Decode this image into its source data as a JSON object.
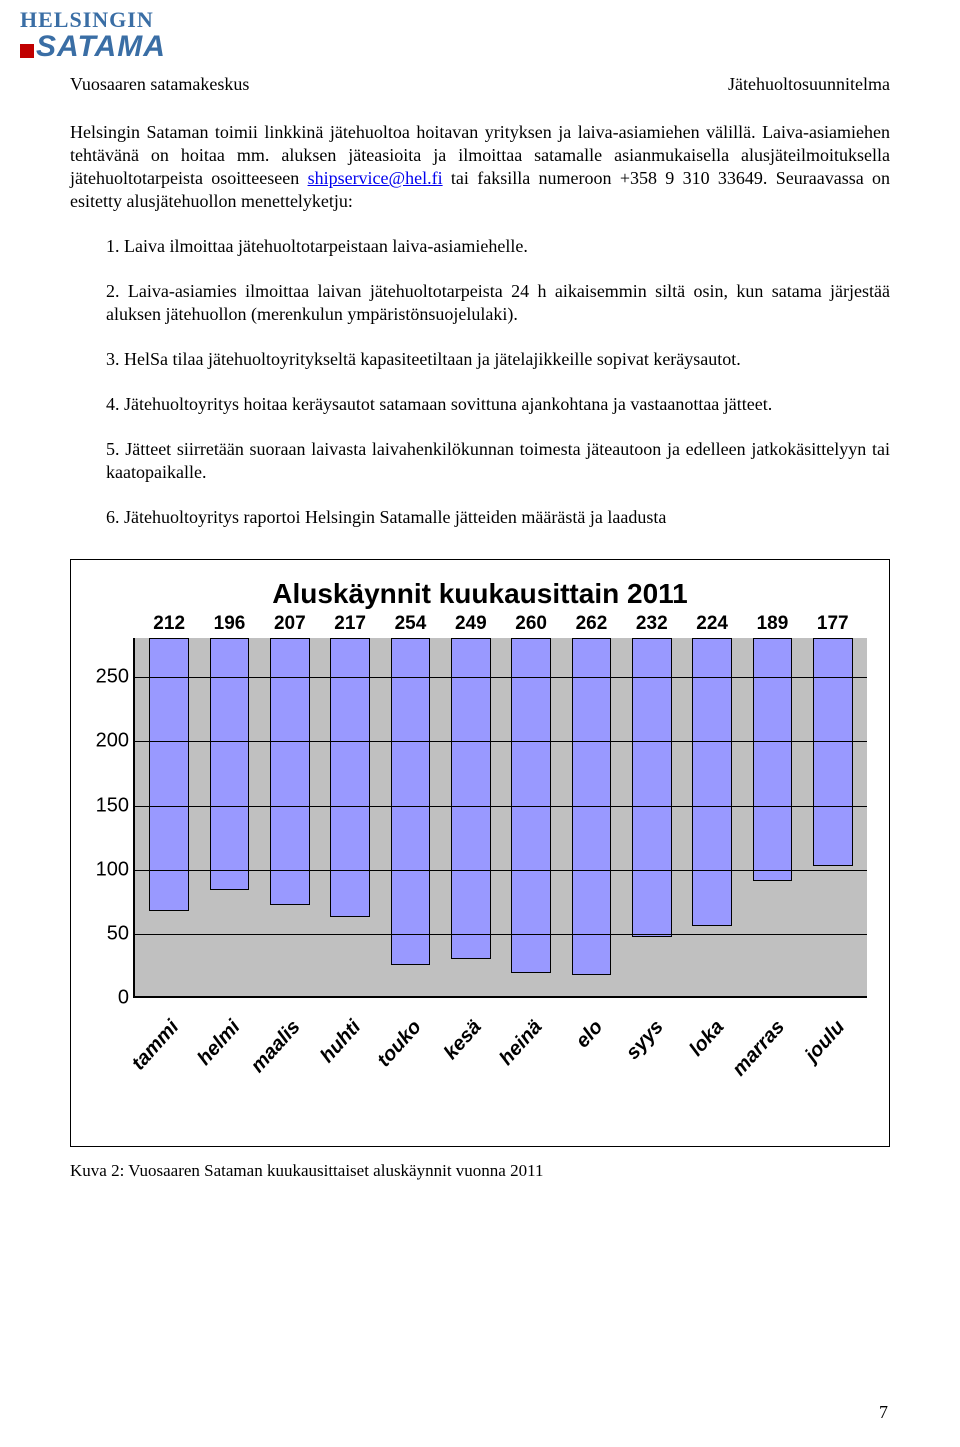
{
  "logo": {
    "top": "HELSINGIN",
    "bottom": "SATAMA"
  },
  "header": {
    "left": "Vuosaaren satamakeskus",
    "right": "Jätehuoltosuunnitelma"
  },
  "intro": {
    "pre": "Helsingin Sataman toimii linkkinä jätehuoltoa hoitavan yrityksen ja laiva-asiamiehen välillä. Laiva-asiamiehen tehtävänä on hoitaa mm. aluksen jäteasioita ja ilmoittaa satamalle asianmukaisella alusjäteilmoituksella jätehuoltotarpeista osoitteeseen ",
    "link": "shipservice@hel.fi",
    "post": " tai faksilla numeroon +358 9 310 33649. Seuraavassa on esitetty alusjätehuollon menettelyketju:"
  },
  "items": [
    "1. Laiva ilmoittaa jätehuoltotarpeistaan laiva-asiamiehelle.",
    "2. Laiva-asiamies ilmoittaa laivan jätehuoltotarpeista 24 h aikaisemmin siltä osin, kun satama järjestää aluksen jätehuollon (merenkulun ympäristönsuojelulaki).",
    "3. HelSa tilaa jätehuoltoyritykseltä kapasiteetiltaan ja jätelajikkeille sopivat keräysautot.",
    "4. Jätehuoltoyritys hoitaa keräysautot satamaan sovittuna ajankohtana ja vastaanottaa jätteet.",
    "5. Jätteet siirretään suoraan laivasta laivahenkilökunnan toimesta jäteautoon ja edelleen jatkokäsittelyyn tai kaatopaikalle.",
    "6. Jätehuoltoyritys raportoi Helsingin Satamalle jätteiden määrästä ja laadusta"
  ],
  "chart": {
    "type": "bar",
    "title": "Aluskäynnit kuukausittain 2011",
    "ymax": 280,
    "yticks": [
      0,
      50,
      100,
      150,
      200,
      250
    ],
    "bar_color": "#9999ff",
    "bg_color": "#c0c0c0",
    "categories": [
      "tammi",
      "helmi",
      "maalis",
      "huhti",
      "touko",
      "kesä",
      "heinä",
      "elo",
      "syys",
      "loka",
      "marras",
      "joulu"
    ],
    "values": [
      212,
      196,
      207,
      217,
      254,
      249,
      260,
      262,
      232,
      224,
      189,
      177
    ]
  },
  "caption": "Kuva 2: Vuosaaren Sataman kuukausittaiset aluskäynnit vuonna 2011",
  "page_num": "7"
}
